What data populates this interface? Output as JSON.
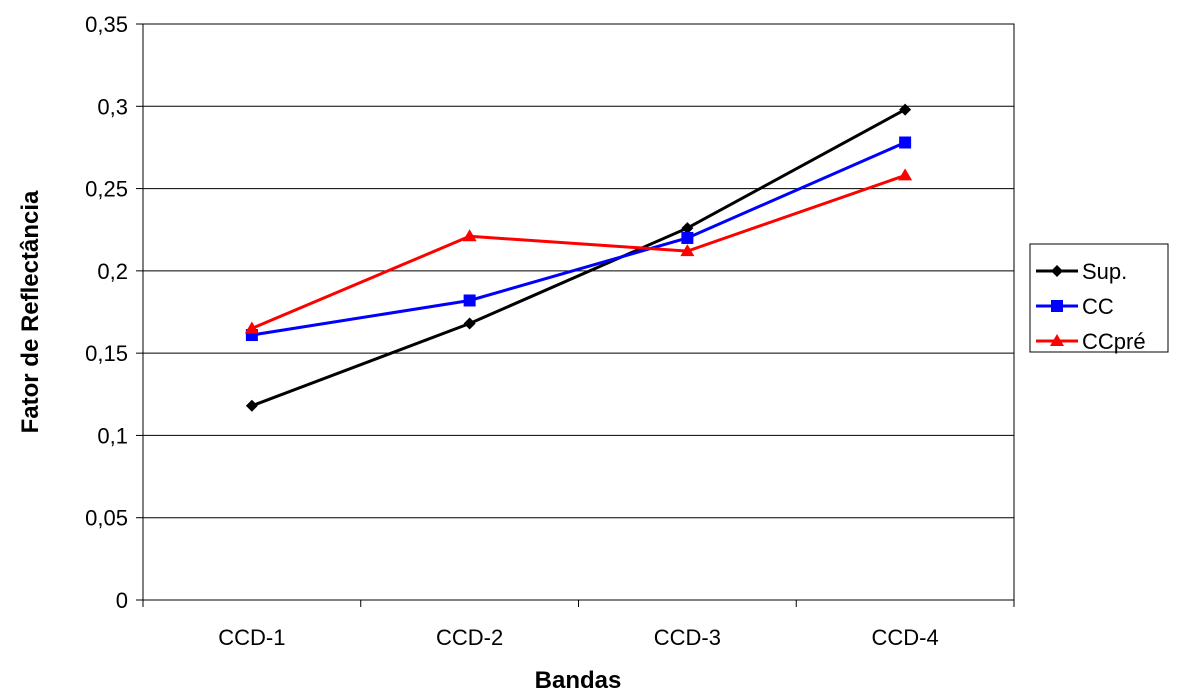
{
  "chart_data": {
    "type": "line",
    "categories": [
      "CCD-1",
      "CCD-2",
      "CCD-3",
      "CCD-4"
    ],
    "series": [
      {
        "name": "Sup.",
        "values": [
          0.118,
          0.168,
          0.226,
          0.298
        ],
        "color": "#000000",
        "marker": "diamond"
      },
      {
        "name": "CC",
        "values": [
          0.161,
          0.182,
          0.22,
          0.278
        ],
        "color": "#0000FF",
        "marker": "square"
      },
      {
        "name": "CCpré",
        "values": [
          0.165,
          0.221,
          0.212,
          0.258
        ],
        "color": "#FF0000",
        "marker": "triangle"
      }
    ],
    "xlabel": "Bandas",
    "ylabel": "Fator de Reflectância",
    "ylim": [
      0,
      0.35
    ],
    "yticks": [
      "0",
      "0,05",
      "0,1",
      "0,15",
      "0,2",
      "0,25",
      "0,3",
      "0,35"
    ],
    "grid": true,
    "legend_position": "right"
  }
}
